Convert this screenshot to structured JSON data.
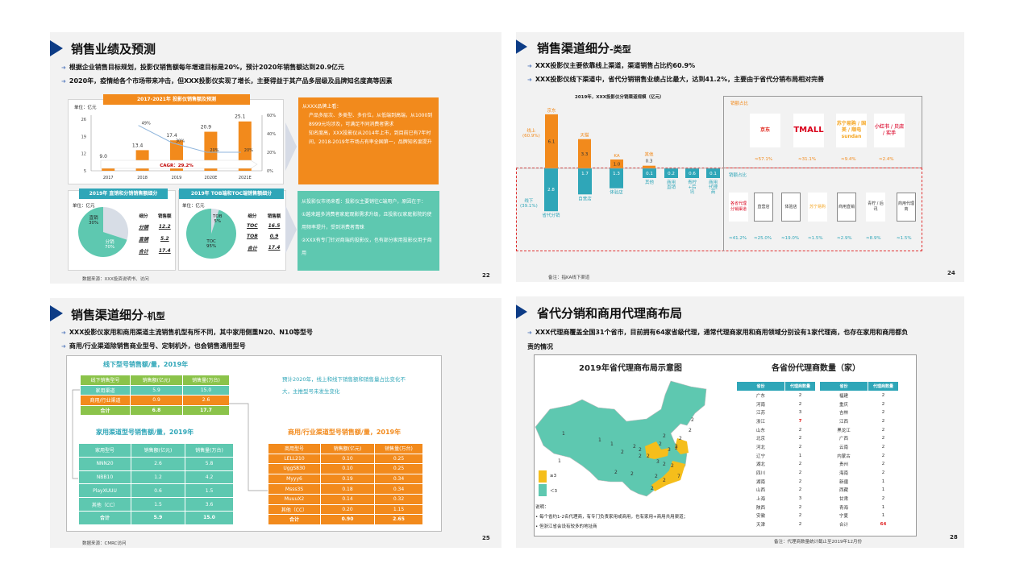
{
  "slide1": {
    "title": "销售业绩及预测",
    "bullets": [
      "根据企业销售目标规划，投影仪销售额每年增速目标是20%，预计2020年销售额达到20.9亿元",
      "2020年，疫情给各个市场带来冲击，但XXX投影仪实现了增长，主要得益于其产品多层级及品牌知名度高等因素"
    ],
    "page": "22",
    "source": "数据来源：XXX投资说明书、访问",
    "chart_data": [
      {
        "type": "bar",
        "title": "2017-2021年 投影仪销售额及预测",
        "unit": "单位：亿元",
        "categories": [
          "2017",
          "2018",
          "2019",
          "2020E",
          "2021E"
        ],
        "values": [
          9.0,
          13.4,
          17.4,
          20.9,
          25.1
        ],
        "ylim": [
          5,
          26
        ],
        "yticks": [
          "26",
          "19",
          "12",
          "5"
        ],
        "growth": {
          "values": [
            49,
            30,
            20,
            20
          ],
          "labels": [
            "49%",
            "30%",
            "20%",
            "20%"
          ],
          "ylim": [
            0,
            60
          ],
          "yticks": [
            "60%",
            "40%",
            "20%",
            "0%"
          ]
        },
        "annotation": "CAGR：29.2%"
      },
      {
        "type": "pie",
        "title": "2019年 直销和分销销售额细分",
        "unit": "单位：亿元",
        "slices": [
          {
            "label": "直销",
            "pct": "30%",
            "value": 30
          },
          {
            "label": "分销",
            "pct": "70%",
            "value": 70
          }
        ],
        "table": {
          "headers": [
            "细分",
            "销售额"
          ],
          "rows": [
            [
              "分销",
              "12.2"
            ],
            [
              "直销",
              "5.2"
            ],
            [
              "合计",
              "17.4"
            ]
          ]
        }
      },
      {
        "type": "pie",
        "title": "2019年 TOB端和TOC端销售额细分",
        "unit": "单位：亿元",
        "slices": [
          {
            "label": "TOB",
            "pct": "5%",
            "value": 5
          },
          {
            "label": "TOC",
            "pct": "95%",
            "value": 95
          }
        ],
        "table": {
          "headers": [
            "细分",
            "销售额"
          ],
          "rows": [
            [
              "TOC",
              "16.5"
            ],
            [
              "TOB",
              "0.9"
            ],
            [
              "合计",
              "17.4"
            ]
          ]
        }
      }
    ],
    "orange_box": {
      "heading": "从XXX品牌上看：",
      "items": [
        "产品多层次、多类型、多价位，从低端到高端，从1000到8999元均涉及，可满足不同消费者需求",
        "知名度高，XXX投影仪从2014年上市，到目前已有7年时间，2018-2019年市场占有率全国第一，品牌知名度提升"
      ]
    },
    "teal_box": {
      "heading": "从投影仪市场来看：投影仪主要销往C端用户，原因在于：",
      "items": [
        "①越来越多消费者家庭观影需求升级，且投影仪家庭影院的使用频率提升，受到消费者青睐",
        "②XXX有专门针对商端的投影仪，也有部分家用投影仪用于商用"
      ]
    },
    "colors": {
      "orange": "#f28a1c",
      "teal": "#5ec8b0",
      "accent": "#0d3c86"
    }
  },
  "slide2": {
    "title": "销售渠道细分",
    "title_suffix": "-类型",
    "bullets": [
      "XXX投影仪主要依靠线上渠道，渠道销售占比约60.9%",
      "XXX投影仪线下渠道中，省代分销销售业绩占比最大，达到41.2%，主要由于省代分销布局相对完善"
    ],
    "page": "24",
    "note": "备注：指KA线下渠道",
    "chart_data": {
      "type": "bar",
      "title": "2019年，XXX投影仪分销渠道规模（亿元）",
      "online": {
        "label": "线上",
        "share": "(60.9%)",
        "categories": [
          "京东",
          "天猫",
          "KA",
          "其他"
        ],
        "values": [
          6.1,
          3.3,
          1.0,
          0.3
        ]
      },
      "offline": {
        "label": "线下",
        "share": "(39.1%)",
        "categories": [
          "省代分销",
          "自营店",
          "体验店",
          "其他",
          "商用直销",
          "青柠+后讯",
          "商用代理商"
        ],
        "values": [
          2.8,
          1.7,
          1.3,
          0.1,
          0.2,
          0.6,
          0.1
        ]
      }
    },
    "online_panel": {
      "label": "销额占比",
      "logos": [
        "京东",
        "TMALL",
        "苏宁易购 / 国美 / 顺电 sundan",
        "小红书 / 贝店 / 实手"
      ],
      "shares": [
        "≈57.1%",
        "≈31.1%",
        "≈9.4%",
        "≈2.4%"
      ]
    },
    "offline_panel": {
      "label": "销额占比",
      "logos": [
        "各省代理分销渠道",
        "直营店",
        "体验店",
        "苏宁易购",
        "商用直销",
        "青柠 / 后讯",
        "商用代理商"
      ],
      "shares": [
        "≈41.2%",
        "≈25.0%",
        "≈19.0%",
        "≈1.5%",
        "≈2.9%",
        "≈8.9%",
        "≈1.5%"
      ]
    }
  },
  "slide3": {
    "title": "销售渠道细分",
    "title_suffix": "-机型",
    "bullets": [
      "XXX投影仪家用和商用渠道主流销售机型有所不同，其中家用侧重N20、N10等型号",
      "商用/行业渠道除销售商业型号、定制机外，也会销售通用型号"
    ],
    "page": "25",
    "source": "数据来源：CMRC访问",
    "note": "预计2020年，线上和线下销售额和销售量占比变化不大，主推型号未发生变化",
    "offline_table": {
      "title": "线下型号销售额/量，2019年",
      "headers": [
        "线下销售型号",
        "销售额(亿元)",
        "销售量(万台)"
      ],
      "rows": [
        [
          "家用渠道",
          "5.9",
          "15.0"
        ],
        [
          "商用/行业渠道",
          "0.9",
          "2.6"
        ],
        [
          "合计",
          "6.8",
          "17.7"
        ]
      ]
    },
    "home_table": {
      "title": "家用渠道型号销售额/量，2019年",
      "headers": [
        "家用型号",
        "销售额(亿元)",
        "销售量(万台)"
      ],
      "rows": [
        [
          "NNN20",
          "2.6",
          "5.8"
        ],
        [
          "NBB10",
          "1.2",
          "4.2"
        ],
        [
          "PlayXUUU",
          "0.6",
          "1.5"
        ],
        [
          "其他（CC）",
          "1.5",
          "3.6"
        ],
        [
          "合计",
          "5.9",
          "15.0"
        ]
      ]
    },
    "biz_table": {
      "title": "商用/行业渠道型号销售额/量，2019年",
      "headers": [
        "商用型号",
        "销售额(亿元)",
        "销售量(万台)"
      ],
      "rows": [
        [
          "LELL210",
          "0.10",
          "0.25"
        ],
        [
          "UggS830",
          "0.10",
          "0.25"
        ],
        [
          "Myyy6",
          "0.19",
          "0.34"
        ],
        [
          "Msss3S",
          "0.18",
          "0.34"
        ],
        [
          "MuuuX2",
          "0.14",
          "0.32"
        ],
        [
          "其他（CC）",
          "0.20",
          "1.15"
        ],
        [
          "合计",
          "0.90",
          "2.65"
        ]
      ]
    }
  },
  "slide4": {
    "title": "省代分销和商用代理商布局",
    "bullets": [
      "XXX代理商覆盖全国31个省市，目前拥有64家省级代理，通常代理商家用和商用领域分别设有1家代理商，也存在家用和商用都负责的情况"
    ],
    "page": "28",
    "note": "备注：代理商数量统计截止至2019年12月份",
    "map": {
      "title": "2019年省代理商布局示意图",
      "legend": [
        "≥3",
        "＜3"
      ],
      "legend_colors": [
        "#f5be1b",
        "#5ec8b0"
      ],
      "labels": [
        "1",
        "1",
        "1",
        "1",
        "2",
        "2",
        "2",
        "2",
        "2",
        "2",
        "2",
        "2",
        "2",
        "2",
        "2",
        "2",
        "2",
        "2",
        "2",
        "2",
        "2",
        "3",
        "3",
        "7",
        "2",
        "2"
      ],
      "explain_title": "说明：",
      "explain": [
        "每个省约1-2名代理商，有专门负责家用或商用，也有家用+商用共用渠道；",
        "但浙江省会设有较多的地址商"
      ]
    },
    "table": {
      "title": "各省份代理商数量（家）",
      "headers": [
        "省份",
        "代理商数量",
        "省份",
        "代理商数量"
      ],
      "left": [
        [
          "广东",
          "2"
        ],
        [
          "河南",
          "2"
        ],
        [
          "江苏",
          "3"
        ],
        [
          "浙江",
          "7"
        ],
        [
          "山东",
          "2"
        ],
        [
          "北京",
          "2"
        ],
        [
          "河北",
          "2"
        ],
        [
          "辽宁",
          "1"
        ],
        [
          "湖北",
          "2"
        ],
        [
          "四川",
          "2"
        ],
        [
          "湖南",
          "2"
        ],
        [
          "山西",
          "2"
        ],
        [
          "上海",
          "3"
        ],
        [
          "陕西",
          "2"
        ],
        [
          "安徽",
          "2"
        ],
        [
          "天津",
          "2"
        ]
      ],
      "right": [
        [
          "福建",
          "2"
        ],
        [
          "重庆",
          "2"
        ],
        [
          "吉林",
          "2"
        ],
        [
          "江西",
          "2"
        ],
        [
          "黑龙江",
          "2"
        ],
        [
          "广西",
          "2"
        ],
        [
          "云南",
          "2"
        ],
        [
          "内蒙古",
          "2"
        ],
        [
          "贵州",
          "2"
        ],
        [
          "海南",
          "2"
        ],
        [
          "新疆",
          "1"
        ],
        [
          "西藏",
          "1"
        ],
        [
          "甘肃",
          "2"
        ],
        [
          "青海",
          "1"
        ],
        [
          "宁夏",
          "1"
        ],
        [
          "合计",
          "64"
        ]
      ],
      "highlight_color": "#e02020"
    }
  }
}
